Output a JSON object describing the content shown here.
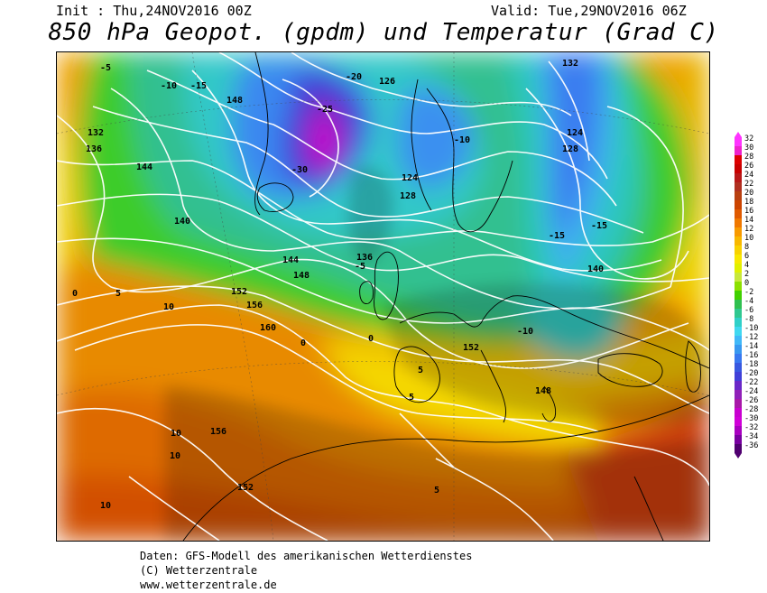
{
  "header": {
    "init": "Init : Thu,24NOV2016 00Z",
    "valid": "Valid: Tue,29NOV2016 06Z",
    "title": "850 hPa Geopot. (gpdm) und Temperatur (Grad C)"
  },
  "footer": {
    "line1": "Daten: GFS-Modell des amerikanischen Wetterdienstes",
    "line2": "(C) Wetterzentrale",
    "line3": "www.wetterzentrale.de"
  },
  "legend": {
    "ticks": [
      "32",
      "30",
      "28",
      "26",
      "24",
      "22",
      "20",
      "18",
      "16",
      "14",
      "12",
      "10",
      "8",
      "6",
      "4",
      "2",
      "0",
      "-2",
      "-4",
      "-6",
      "-8",
      "-10",
      "-12",
      "-14",
      "-16",
      "-18",
      "-20",
      "-22",
      "-24",
      "-26",
      "-28",
      "-30",
      "-32",
      "-34",
      "-36"
    ],
    "colors": [
      "#ff33ff",
      "#ee22cc",
      "#dd0000",
      "#c80000",
      "#b81818",
      "#b03020",
      "#b84010",
      "#cc4400",
      "#e05a00",
      "#f07800",
      "#f89a00",
      "#f8b800",
      "#f8d200",
      "#f8e800",
      "#e0f000",
      "#c8e83c",
      "#8ce000",
      "#40d000",
      "#30c050",
      "#30c890",
      "#30d0c8",
      "#40d8f0",
      "#40b8f8",
      "#3898f0",
      "#3878f0",
      "#3858e0",
      "#4040d8",
      "#6a28c8",
      "#9020b8",
      "#a818a8",
      "#c800d0",
      "#d000d8",
      "#a800c0",
      "#7800a0",
      "#500070"
    ]
  },
  "map_labels": {
    "geopotential": [
      {
        "text": "144",
        "color": "#000"
      },
      {
        "text": "148",
        "color": "#000"
      },
      {
        "text": "132",
        "color": "#000"
      },
      {
        "text": "126",
        "color": "#000"
      },
      {
        "text": "136",
        "color": "#000"
      },
      {
        "text": "140",
        "color": "#000"
      },
      {
        "text": "128",
        "color": "#000"
      },
      {
        "text": "124",
        "color": "#000"
      },
      {
        "text": "152",
        "color": "#000"
      },
      {
        "text": "156",
        "color": "#000"
      },
      {
        "text": "160",
        "color": "#000"
      }
    ],
    "temperature": [
      {
        "text": "-5"
      },
      {
        "text": "-10"
      },
      {
        "text": "-15"
      },
      {
        "text": "-20"
      },
      {
        "text": "-25"
      },
      {
        "text": "-30"
      },
      {
        "text": "0"
      },
      {
        "text": "5"
      },
      {
        "text": "10"
      }
    ]
  },
  "colors": {
    "contour": "#ffffff",
    "coast": "#000000"
  }
}
